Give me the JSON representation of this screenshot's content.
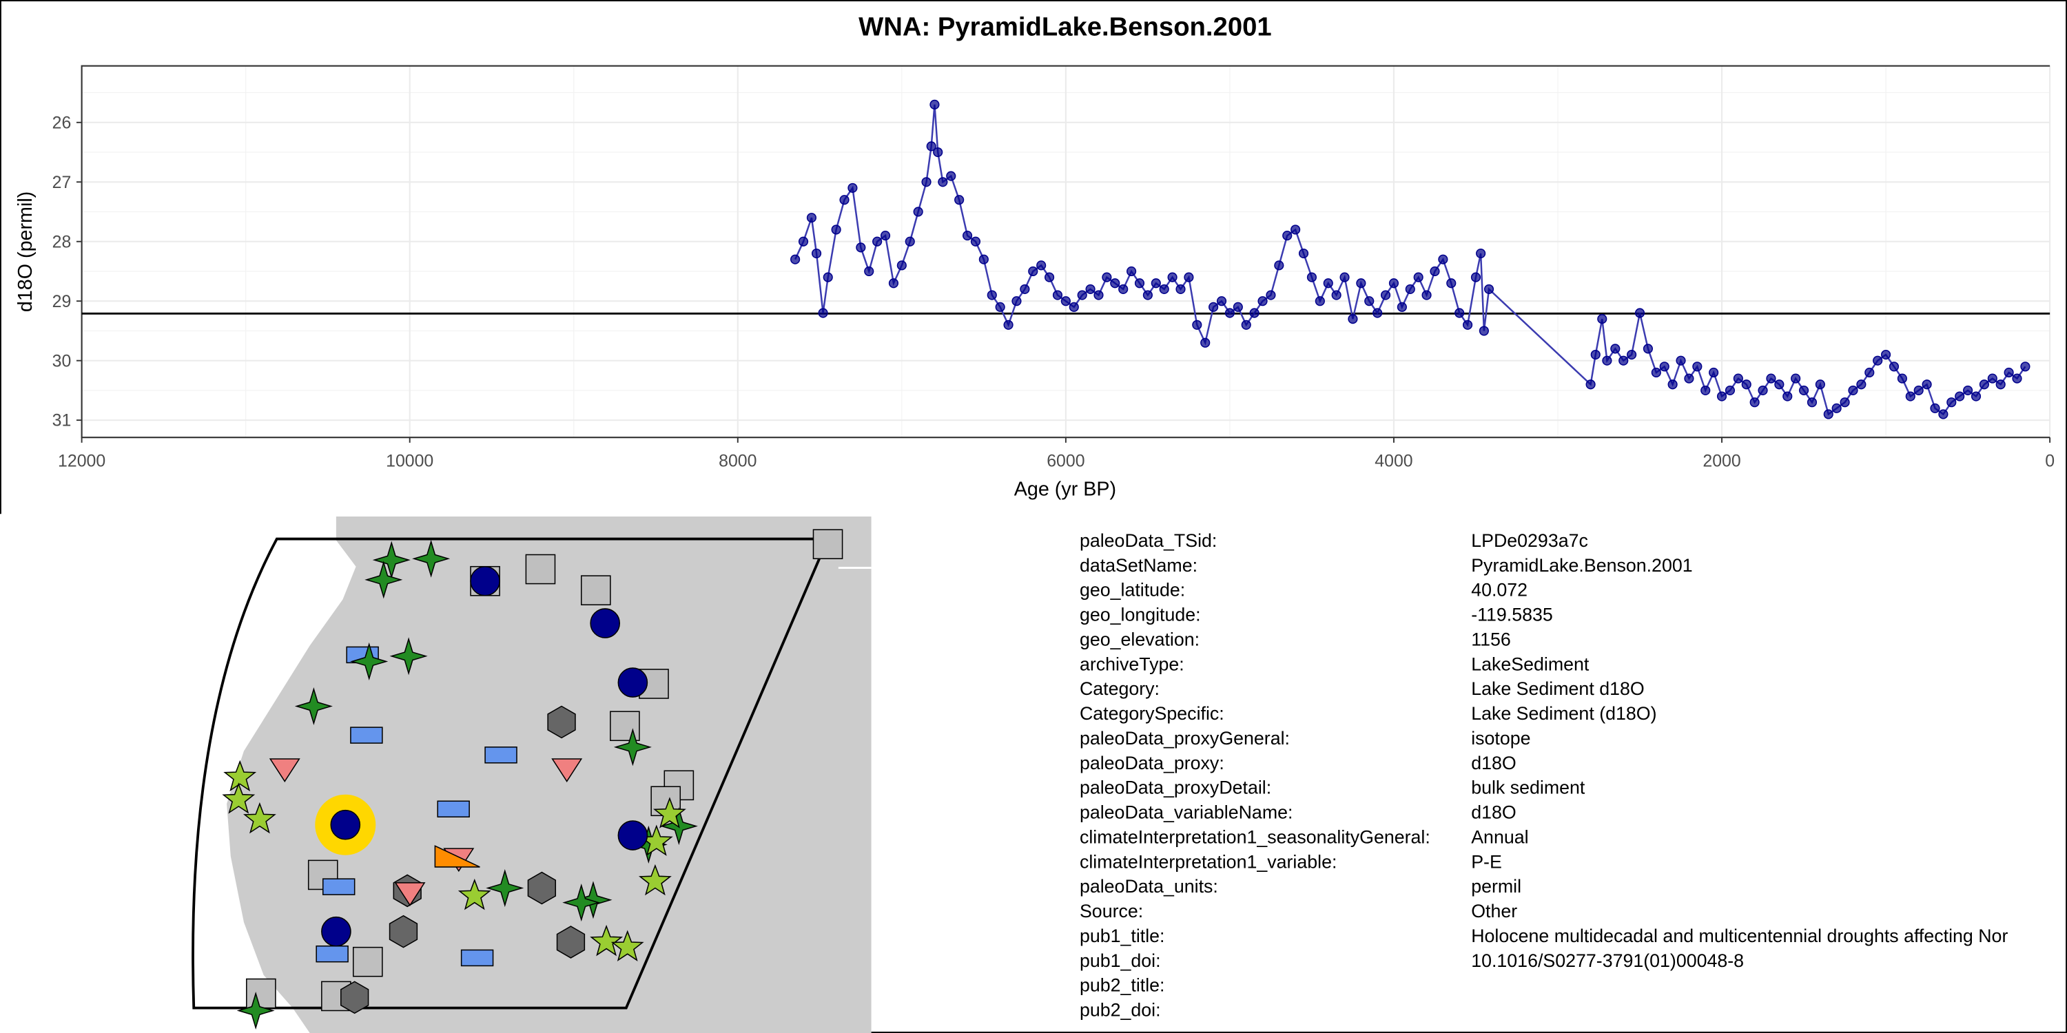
{
  "chart_data": {
    "type": "line",
    "title": "WNA: PyramidLake.Benson.2001",
    "x_label": "Age (yr BP)",
    "y_label": "d18O (permil)",
    "x": [
      7650,
      7600,
      7550,
      7520,
      7480,
      7450,
      7400,
      7350,
      7300,
      7250,
      7200,
      7150,
      7100,
      7050,
      7000,
      6950,
      6900,
      6850,
      6820,
      6800,
      6780,
      6750,
      6700,
      6650,
      6600,
      6550,
      6500,
      6450,
      6400,
      6350,
      6300,
      6250,
      6200,
      6150,
      6100,
      6050,
      6000,
      5950,
      5900,
      5850,
      5800,
      5750,
      5700,
      5650,
      5600,
      5550,
      5500,
      5450,
      5400,
      5350,
      5300,
      5250,
      5200,
      5150,
      5100,
      5050,
      5000,
      4950,
      4900,
      4850,
      4800,
      4750,
      4700,
      4650,
      4600,
      4550,
      4500,
      4450,
      4400,
      4350,
      4300,
      4250,
      4200,
      4150,
      4100,
      4050,
      4000,
      3950,
      3900,
      3850,
      3800,
      3750,
      3700,
      3650,
      3600,
      3550,
      3500,
      3470,
      3450,
      3420,
      2800,
      2770,
      2730,
      2700,
      2650,
      2600,
      2550,
      2500,
      2450,
      2400,
      2350,
      2300,
      2250,
      2200,
      2150,
      2100,
      2050,
      2000,
      1950,
      1900,
      1850,
      1800,
      1750,
      1700,
      1650,
      1600,
      1550,
      1500,
      1450,
      1400,
      1350,
      1300,
      1250,
      1200,
      1150,
      1100,
      1050,
      1000,
      950,
      900,
      850,
      800,
      750,
      700,
      650,
      600,
      550,
      500,
      450,
      400,
      350,
      300,
      250,
      200,
      150
    ],
    "values": [
      28.3,
      28.0,
      27.6,
      28.2,
      29.2,
      28.6,
      27.8,
      27.3,
      27.1,
      28.1,
      28.5,
      28.0,
      27.9,
      28.7,
      28.4,
      28.0,
      27.5,
      27.0,
      26.4,
      25.7,
      26.5,
      27.0,
      26.9,
      27.3,
      27.9,
      28.0,
      28.3,
      28.9,
      29.1,
      29.4,
      29.0,
      28.8,
      28.5,
      28.4,
      28.6,
      28.9,
      29.0,
      29.1,
      28.9,
      28.8,
      28.9,
      28.6,
      28.7,
      28.8,
      28.5,
      28.7,
      28.9,
      28.7,
      28.8,
      28.6,
      28.8,
      28.6,
      29.4,
      29.7,
      29.1,
      29.0,
      29.2,
      29.1,
      29.4,
      29.2,
      29.0,
      28.9,
      28.4,
      27.9,
      27.8,
      28.2,
      28.6,
      29.0,
      28.7,
      28.9,
      28.6,
      29.3,
      28.7,
      29.0,
      29.2,
      28.9,
      28.7,
      29.1,
      28.8,
      28.6,
      28.9,
      28.5,
      28.3,
      28.7,
      29.2,
      29.4,
      28.6,
      28.2,
      29.5,
      28.8,
      30.4,
      29.9,
      29.3,
      30.0,
      29.8,
      30.0,
      29.9,
      29.2,
      29.8,
      30.2,
      30.1,
      30.4,
      30.0,
      30.3,
      30.1,
      30.5,
      30.2,
      30.6,
      30.5,
      30.3,
      30.4,
      30.7,
      30.5,
      30.3,
      30.4,
      30.6,
      30.3,
      30.5,
      30.7,
      30.4,
      30.9,
      30.8,
      30.7,
      30.5,
      30.4,
      30.2,
      30.0,
      29.9,
      30.1,
      30.3,
      30.6,
      30.5,
      30.4,
      30.8,
      30.9,
      30.7,
      30.6,
      30.5,
      30.6,
      30.4,
      30.3,
      30.4,
      30.2,
      30.3,
      30.1
    ],
    "color": "#00008b",
    "line_color": "#3b3bb0",
    "xlim": [
      12000,
      0
    ],
    "ylim": [
      31.29,
      25.05
    ],
    "xticks": [
      12000,
      10000,
      8000,
      6000,
      4000,
      2000,
      0
    ],
    "yticks": [
      26,
      27,
      28,
      29,
      30,
      31
    ],
    "grid": true,
    "reference_line": 29.21
  },
  "metadata": {
    "rows": [
      [
        "paleoData_TSid:",
        "LPDe0293a7c"
      ],
      [
        "dataSetName:",
        "PyramidLake.Benson.2001"
      ],
      [
        "geo_latitude:",
        "40.072"
      ],
      [
        "geo_longitude:",
        "-119.5835"
      ],
      [
        "geo_elevation:",
        "1156"
      ],
      [
        "archiveType:",
        "LakeSediment"
      ],
      [
        "Category:",
        "Lake Sediment d18O"
      ],
      [
        "CategorySpecific:",
        "Lake Sediment (d18O)"
      ],
      [
        "paleoData_proxyGeneral:",
        "isotope"
      ],
      [
        "paleoData_proxy:",
        "d18O"
      ],
      [
        "paleoData_proxyDetail:",
        "bulk sediment"
      ],
      [
        "paleoData_variableName:",
        "d18O"
      ],
      [
        "climateInterpretation1_seasonalityGeneral:",
        "Annual"
      ],
      [
        "climateInterpretation1_variable:",
        "P-E"
      ],
      [
        "paleoData_units:",
        "permil"
      ],
      [
        "Source:",
        "Other"
      ],
      [
        "pub1_title:",
        "Holocene multidecadal and multicentennial droughts affecting Nor"
      ],
      [
        "pub1_doi:",
        "10.1016/S0277-3791(01)00048-8"
      ],
      [
        "pub2_title:"
      ],
      [
        "pub2_doi:"
      ]
    ]
  }
}
